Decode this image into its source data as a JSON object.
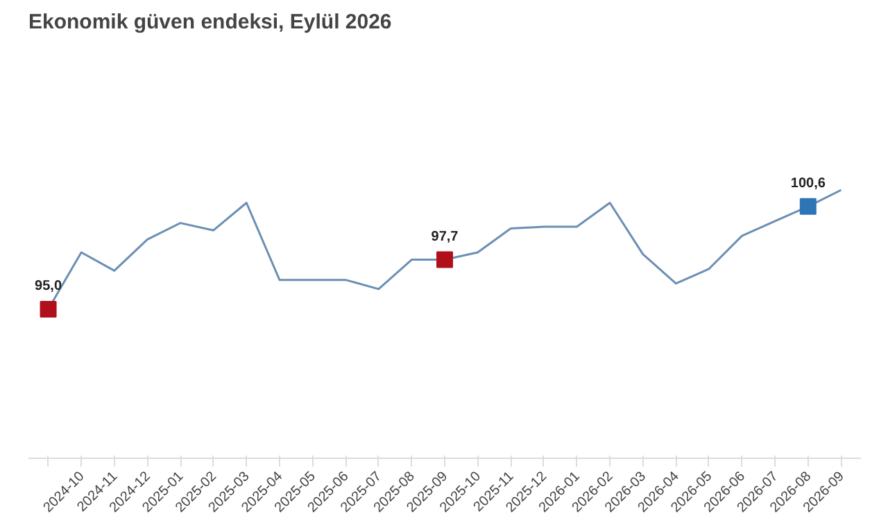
{
  "chart_data": {
    "type": "line",
    "title": "Ekonomik güven endeksi, Eylül 2026",
    "categories": [
      null,
      "2024-10",
      "2024-11",
      "2024-12",
      "2025-01",
      "2025-02",
      "2025-03",
      "2025-04",
      "2025-05",
      "2025-06",
      "2025-07",
      "2025-08",
      "2025-09",
      "2025-10",
      "2025-11",
      "2025-12",
      "2026-01",
      "2026-02",
      "2026-03",
      "2026-04",
      "2026-05",
      "2026-06",
      "2026-07",
      "2026-08",
      "2026-09"
    ],
    "grid": false,
    "series": [
      {
        "color": "#6b8fb3",
        "marker": "none",
        "values": [
          95.0,
          98.1,
          97.1,
          98.8,
          99.7,
          99.3,
          100.8,
          96.6,
          96.6,
          96.6,
          96.1,
          97.7,
          97.7,
          98.1,
          99.4,
          99.5,
          99.5,
          100.8,
          98.0,
          96.4,
          97.2,
          99.0,
          99.8,
          100.6,
          101.5
        ]
      },
      {
        "type": "scatter",
        "marker": "square",
        "colors": [
          "#b0101c",
          null,
          null,
          null,
          null,
          null,
          null,
          null,
          null,
          null,
          null,
          null,
          "#b0101c",
          null,
          null,
          null,
          null,
          null,
          null,
          null,
          null,
          null,
          null,
          "#2e75b6",
          null
        ],
        "values": [
          95.0,
          null,
          null,
          null,
          null,
          null,
          null,
          null,
          null,
          null,
          null,
          null,
          97.7,
          null,
          null,
          null,
          null,
          null,
          null,
          null,
          null,
          null,
          null,
          100.6,
          null
        ],
        "value_labels": [
          "95,0",
          null,
          null,
          null,
          null,
          null,
          null,
          null,
          null,
          null,
          null,
          null,
          "97,7",
          null,
          null,
          null,
          null,
          null,
          null,
          null,
          null,
          null,
          null,
          "100,6",
          null
        ]
      }
    ]
  }
}
